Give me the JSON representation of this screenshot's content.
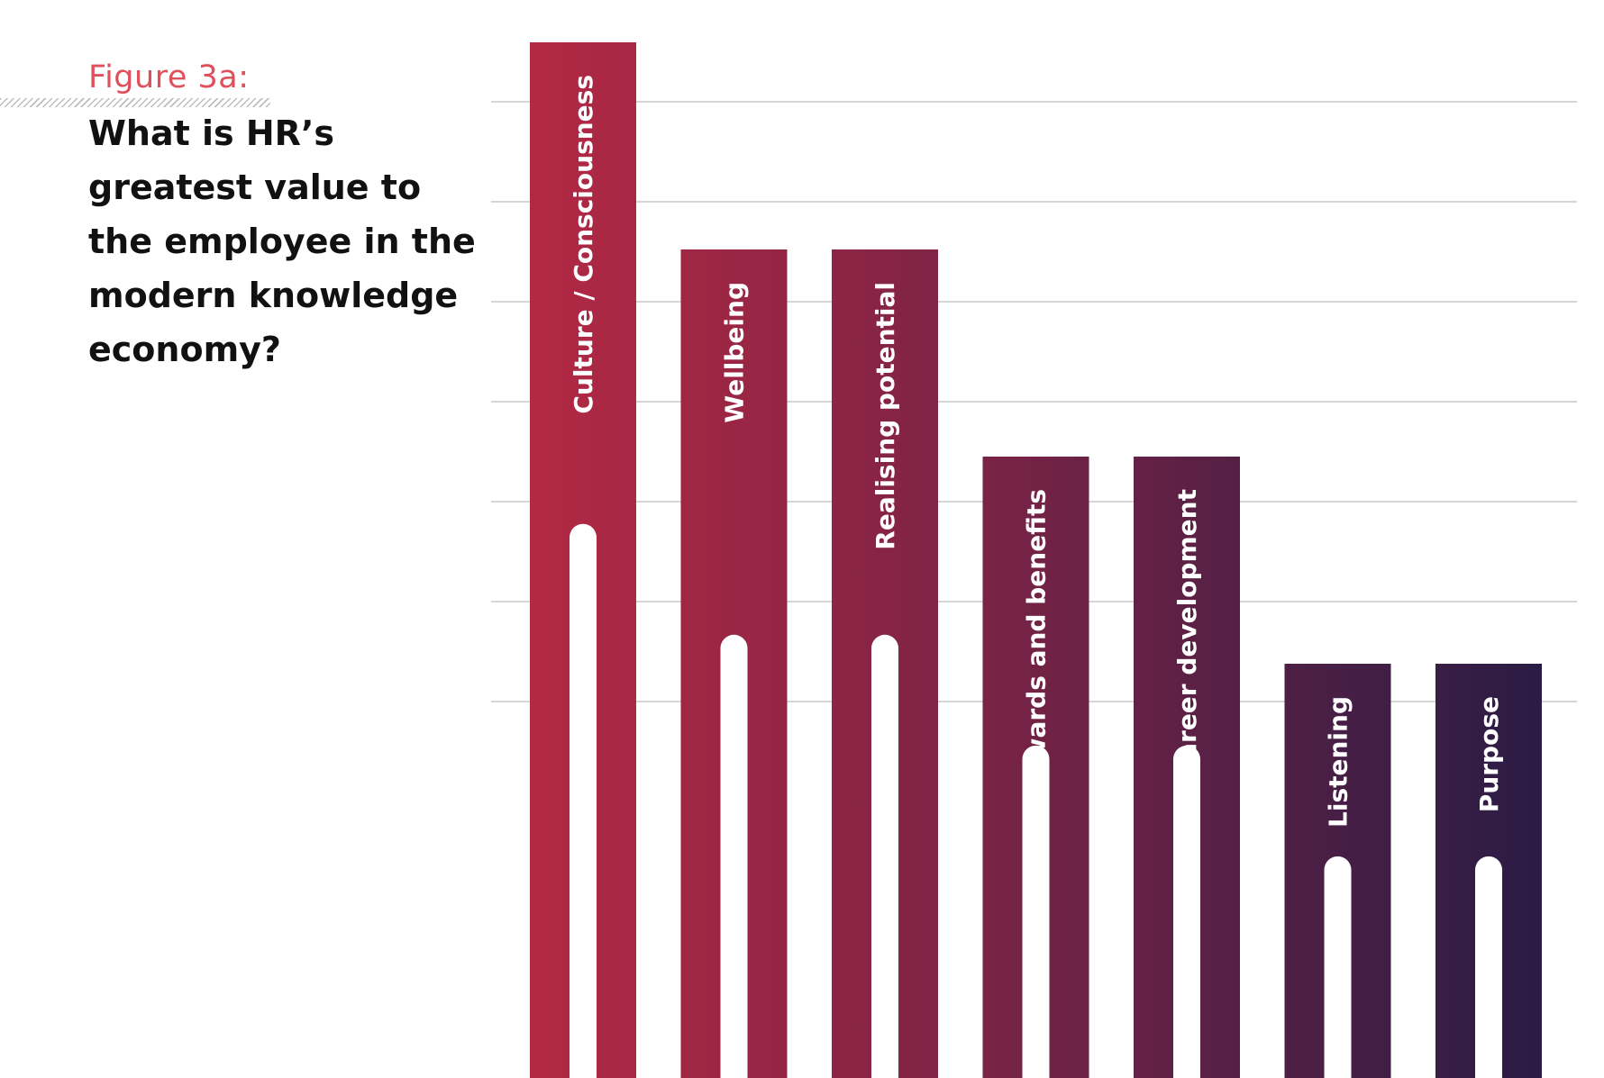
{
  "figure_label": "Figure 3a:",
  "chart_data": {
    "type": "bar",
    "title": "What is HR’s greatest value to the employee in the modern knowledge economy?",
    "categories": [
      "Culture / Consciousness",
      "Wellbeing",
      "Realising potential",
      "Rewards and benefits",
      "Career development",
      "Listening",
      "Purpose"
    ],
    "values": [
      10,
      8,
      8,
      6,
      6,
      4,
      4
    ],
    "ylim": [
      0,
      10
    ],
    "grid": true,
    "axis_labels_visible": false,
    "colors": {
      "bar_start": "#b32944",
      "bar_end": "#2a1c45",
      "label_text": "#ffffff",
      "grid": "#c8c8c8"
    }
  }
}
